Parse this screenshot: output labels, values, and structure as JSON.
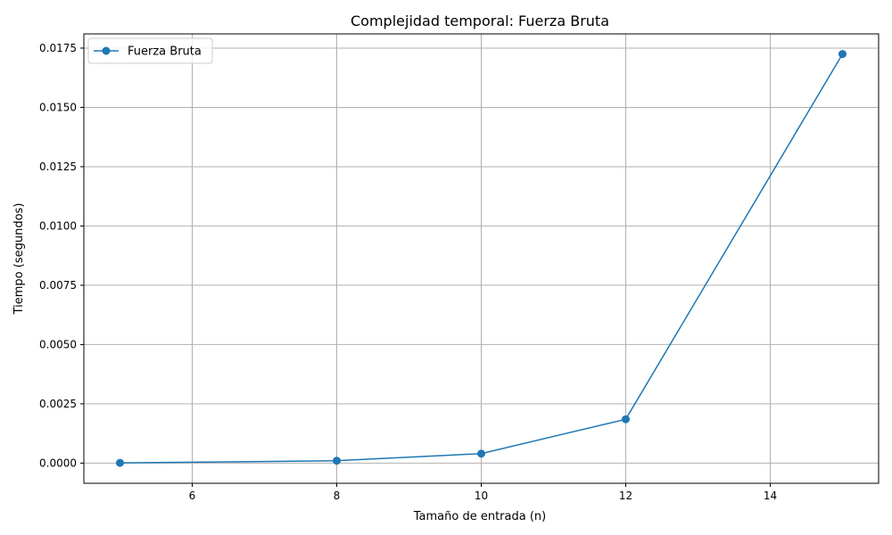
{
  "chart_data": {
    "type": "line",
    "title": "Complejidad temporal: Fuerza Bruta",
    "xlabel": "Tamaño de entrada (n)",
    "ylabel": "Tiempo (segundos)",
    "xlim": [
      4.5,
      15.5
    ],
    "ylim": [
      -0.00085,
      0.0181
    ],
    "xticks": [
      6,
      8,
      10,
      12,
      14
    ],
    "xtick_labels": [
      "6",
      "8",
      "10",
      "12",
      "14"
    ],
    "yticks": [
      0.0,
      0.0025,
      0.005,
      0.0075,
      0.01,
      0.0125,
      0.015,
      0.0175
    ],
    "ytick_labels": [
      "0.0000",
      "0.0025",
      "0.0050",
      "0.0075",
      "0.0100",
      "0.0125",
      "0.0150",
      "0.0175"
    ],
    "grid": true,
    "legend_position": "upper-left",
    "series": [
      {
        "name": "Fuerza Bruta",
        "color": "#1f77b4",
        "marker": "circle",
        "x": [
          5,
          8,
          10,
          12,
          15
        ],
        "y": [
          1e-05,
          0.0001,
          0.0004,
          0.00185,
          0.01725
        ]
      }
    ]
  }
}
